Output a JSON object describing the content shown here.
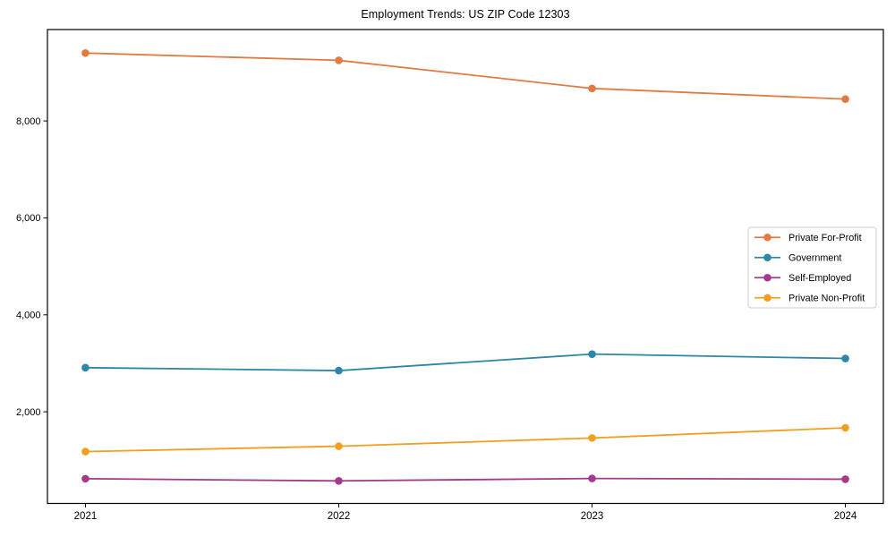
{
  "window": {
    "background": "#ffffff"
  },
  "chart_data": {
    "type": "line",
    "title": "Employment Trends: US ZIP Code 12303",
    "xlabel": "",
    "ylabel": "",
    "x": [
      2021,
      2022,
      2023,
      2024
    ],
    "x_tick_labels": [
      "2021",
      "2022",
      "2023",
      "2024"
    ],
    "y_ticks": [
      {
        "value": 2000,
        "label": "2,000"
      },
      {
        "value": 4000,
        "label": "4,000"
      },
      {
        "value": 6000,
        "label": "6,000"
      },
      {
        "value": 8000,
        "label": "8,000"
      }
    ],
    "xlim": [
      2020.85,
      2024.15
    ],
    "ylim": [
      110,
      9885
    ],
    "grid": false,
    "marker_style": "circle",
    "axis_color": "#000000",
    "text_color": "#000000",
    "legend": {
      "position": "right-middle",
      "background": "#ffffff",
      "border_color": "#cccccc"
    },
    "series": [
      {
        "name": "Private For-Profit",
        "color": "#E07B44",
        "values": [
          9400,
          9250,
          8670,
          8450
        ]
      },
      {
        "name": "Government",
        "color": "#2E86A8",
        "values": [
          2910,
          2850,
          3190,
          3100
        ]
      },
      {
        "name": "Self-Employed",
        "color": "#A33A8B",
        "values": [
          620,
          575,
          625,
          610
        ]
      },
      {
        "name": "Private Non-Profit",
        "color": "#F0A01E",
        "values": [
          1180,
          1290,
          1460,
          1670
        ]
      }
    ]
  }
}
